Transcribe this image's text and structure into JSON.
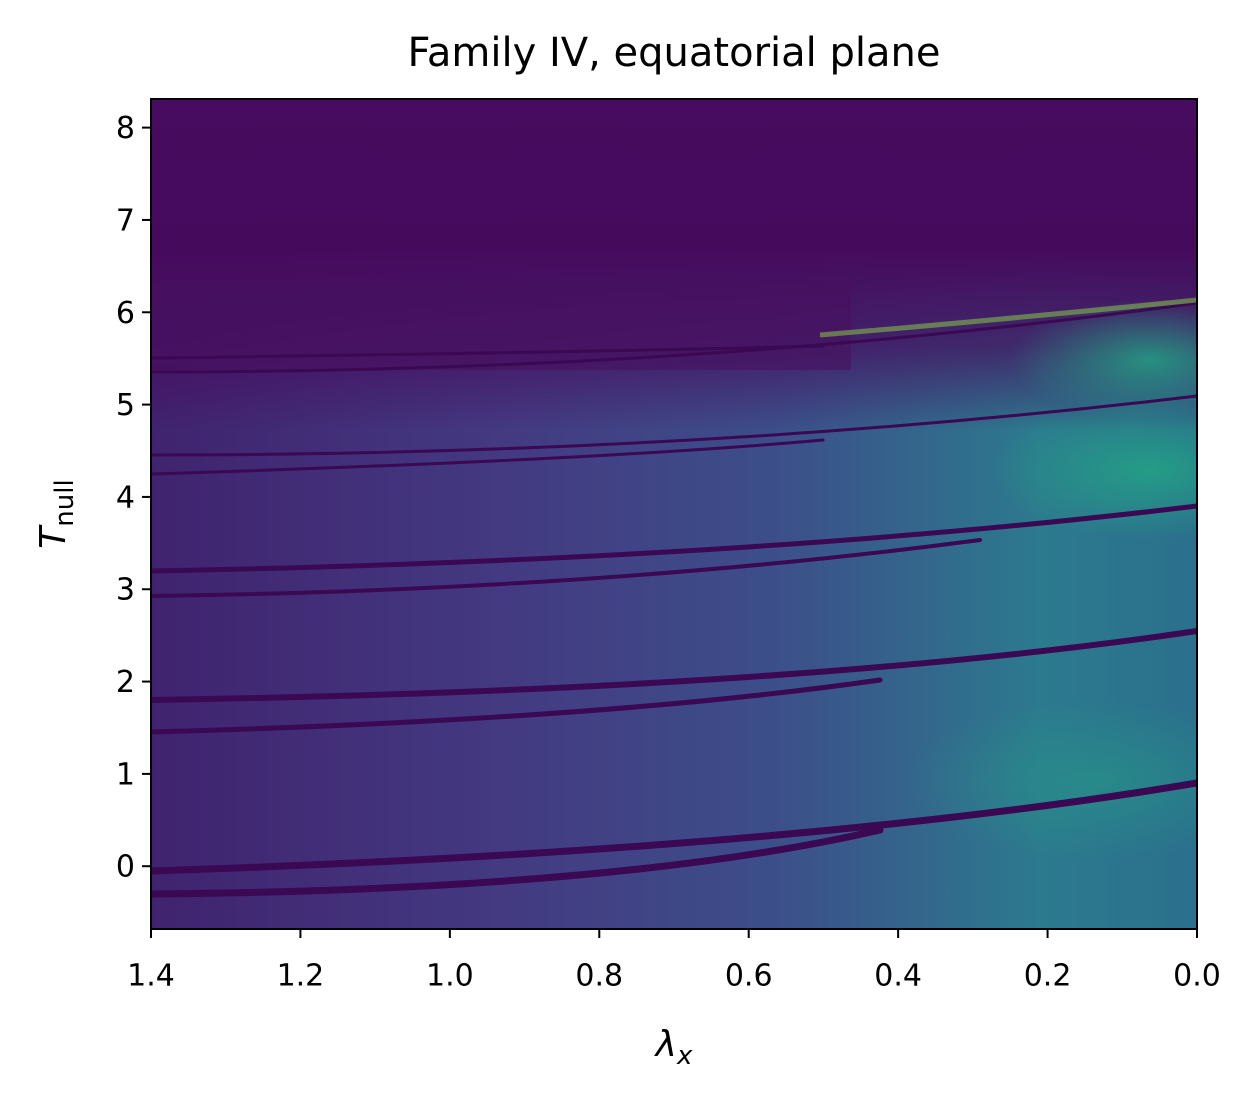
{
  "chart_data": {
    "type": "heatmap",
    "title": "Family IV, equatorial plane",
    "xlabel": {
      "symbol": "λ",
      "sub": "x"
    },
    "ylabel": {
      "symbol": "T",
      "sub": "null"
    },
    "xlim": [
      1.4,
      0.0
    ],
    "xticks": [
      1.4,
      1.2,
      {
        "value": 1,
        "label": "1.0"
      },
      0.8,
      0.6,
      0.4,
      0.2,
      {
        "value": 0,
        "label": "0.0"
      }
    ],
    "ylim": [
      -0.68,
      8.31
    ],
    "yticks": [
      0,
      1,
      2,
      3,
      4,
      5,
      6,
      7,
      8
    ]
  }
}
